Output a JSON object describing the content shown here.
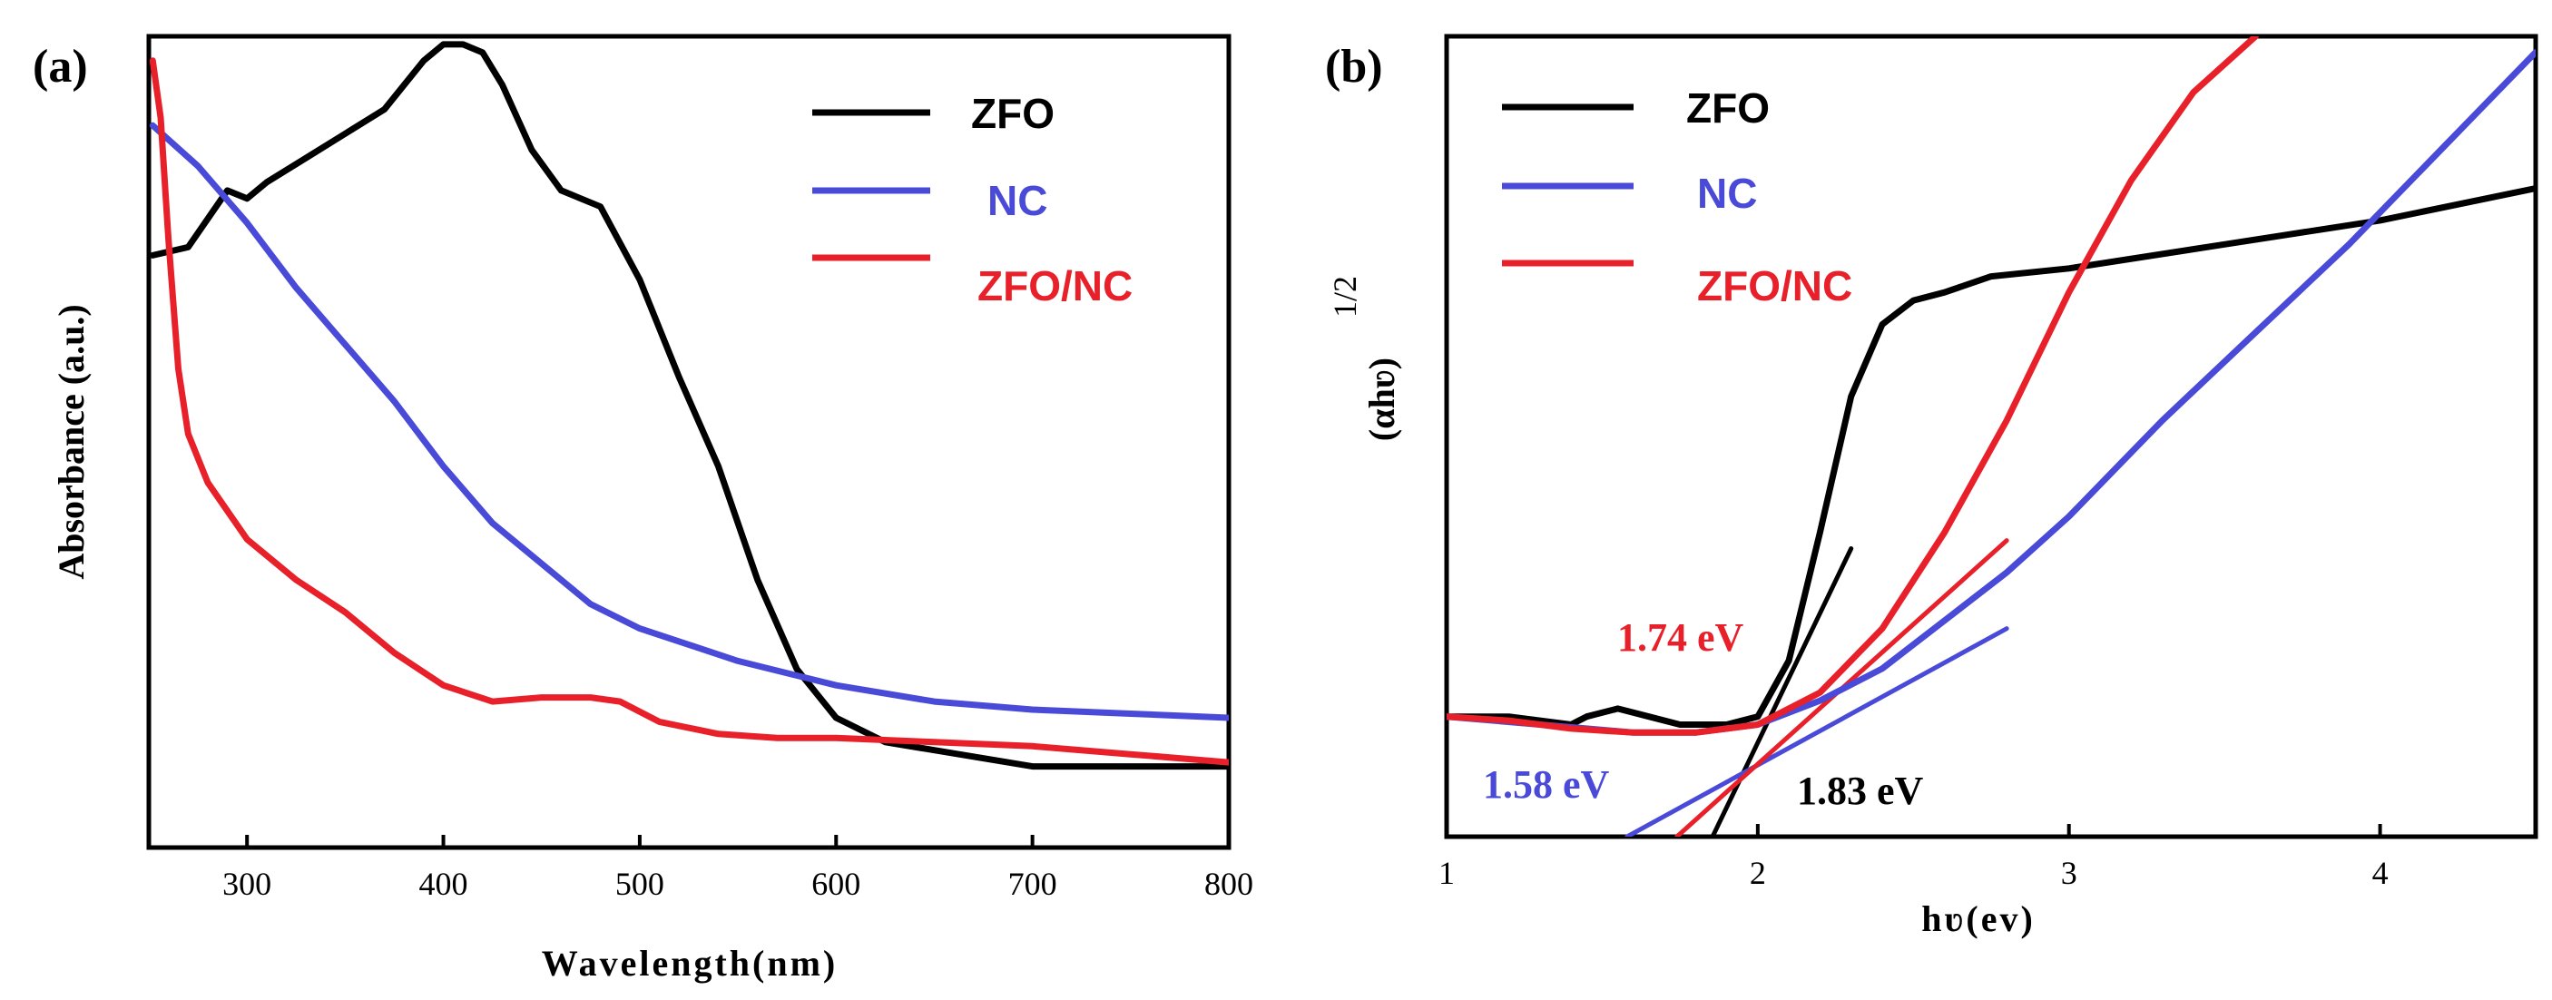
{
  "colors": {
    "ZFO": "#000000",
    "NC": "#4a4ad8",
    "ZFO/NC": "#e8202a"
  },
  "chart_data": [
    {
      "type": "line",
      "panel": "(a)",
      "xlabel": "Wavelength(nm)",
      "ylabel": "Absorbance (a.u.)",
      "xlim": [
        250,
        800
      ],
      "ylim": [
        0,
        1
      ],
      "xticks": [
        300,
        400,
        500,
        600,
        700,
        800
      ],
      "xtick_labels": [
        "300",
        "400",
        "500",
        "600",
        "700",
        "800"
      ],
      "legend": [
        "ZFO",
        "NC",
        "ZFO/NC"
      ],
      "legend_position": "top-right",
      "series": [
        {
          "name": "ZFO",
          "x": [
            252,
            270,
            290,
            300,
            310,
            330,
            350,
            370,
            390,
            400,
            410,
            420,
            430,
            445,
            460,
            480,
            500,
            520,
            540,
            560,
            580,
            600,
            625,
            650,
            700,
            750,
            800
          ],
          "y": [
            0.73,
            0.74,
            0.81,
            0.8,
            0.82,
            0.85,
            0.88,
            0.91,
            0.97,
            0.99,
            0.99,
            0.98,
            0.94,
            0.86,
            0.81,
            0.79,
            0.7,
            0.58,
            0.47,
            0.33,
            0.22,
            0.16,
            0.13,
            0.12,
            0.1,
            0.1,
            0.1
          ]
        },
        {
          "name": "NC",
          "x": [
            252,
            275,
            300,
            325,
            350,
            375,
            400,
            425,
            450,
            475,
            500,
            550,
            600,
            650,
            700,
            750,
            800
          ],
          "y": [
            0.89,
            0.84,
            0.77,
            0.69,
            0.62,
            0.55,
            0.47,
            0.4,
            0.35,
            0.3,
            0.27,
            0.23,
            0.2,
            0.18,
            0.17,
            0.165,
            0.16
          ]
        },
        {
          "name": "ZFO/NC",
          "x": [
            252,
            256,
            260,
            265,
            270,
            280,
            300,
            325,
            350,
            375,
            400,
            425,
            450,
            475,
            490,
            510,
            540,
            570,
            600,
            650,
            700,
            750,
            800
          ],
          "y": [
            0.97,
            0.9,
            0.75,
            0.59,
            0.51,
            0.45,
            0.38,
            0.33,
            0.29,
            0.24,
            0.2,
            0.18,
            0.185,
            0.185,
            0.18,
            0.155,
            0.14,
            0.135,
            0.135,
            0.13,
            0.125,
            0.115,
            0.105
          ]
        }
      ]
    },
    {
      "type": "line",
      "panel": "(b)",
      "xlabel": "hʋ(ev)",
      "ylabel": "(αhʋ)",
      "ylabel_superscript": "1/2",
      "xlim": [
        1,
        4.5
      ],
      "ylim": [
        0,
        1
      ],
      "xticks": [
        1,
        2,
        3,
        4
      ],
      "xtick_labels": [
        "1",
        "2",
        "3",
        "4"
      ],
      "legend": [
        "ZFO",
        "NC",
        "ZFO/NC"
      ],
      "legend_position": "top-left",
      "series": [
        {
          "name": "ZFO",
          "x": [
            1.0,
            1.2,
            1.4,
            1.45,
            1.55,
            1.65,
            1.75,
            1.9,
            2.0,
            2.1,
            2.2,
            2.3,
            2.4,
            2.5,
            2.6,
            2.75,
            3.0,
            3.5,
            4.0,
            4.5
          ],
          "y": [
            0.15,
            0.15,
            0.14,
            0.15,
            0.16,
            0.15,
            0.14,
            0.14,
            0.15,
            0.22,
            0.38,
            0.55,
            0.64,
            0.67,
            0.68,
            0.7,
            0.71,
            0.74,
            0.77,
            0.81
          ]
        },
        {
          "name": "NC",
          "x": [
            1.0,
            1.3,
            1.6,
            1.8,
            2.0,
            2.2,
            2.4,
            2.6,
            2.8,
            3.0,
            3.3,
            3.6,
            3.9,
            4.2,
            4.5
          ],
          "y": [
            0.15,
            0.14,
            0.13,
            0.13,
            0.14,
            0.17,
            0.21,
            0.27,
            0.33,
            0.4,
            0.52,
            0.63,
            0.74,
            0.86,
            0.98
          ]
        },
        {
          "name": "ZFO/NC",
          "x": [
            1.0,
            1.2,
            1.4,
            1.6,
            1.8,
            2.0,
            2.2,
            2.4,
            2.6,
            2.8,
            3.0,
            3.2,
            3.4,
            3.6
          ],
          "y": [
            0.15,
            0.145,
            0.135,
            0.13,
            0.13,
            0.14,
            0.18,
            0.26,
            0.38,
            0.52,
            0.68,
            0.82,
            0.93,
            1.0
          ]
        }
      ],
      "tangent_lines": [
        {
          "name": "ZFO",
          "x": [
            1.83,
            2.3
          ],
          "y": [
            -0.02,
            0.36
          ]
        },
        {
          "name": "NC",
          "x": [
            1.58,
            2.8
          ],
          "y": [
            0.0,
            0.26
          ]
        },
        {
          "name": "ZFO/NC",
          "x": [
            1.74,
            2.8
          ],
          "y": [
            0.0,
            0.37
          ]
        }
      ],
      "annotations": [
        {
          "text": "1.74 eV",
          "series": "ZFO/NC"
        },
        {
          "text": "1.58 eV",
          "series": "NC"
        },
        {
          "text": "1.83 eV",
          "series": "ZFO"
        }
      ]
    }
  ]
}
